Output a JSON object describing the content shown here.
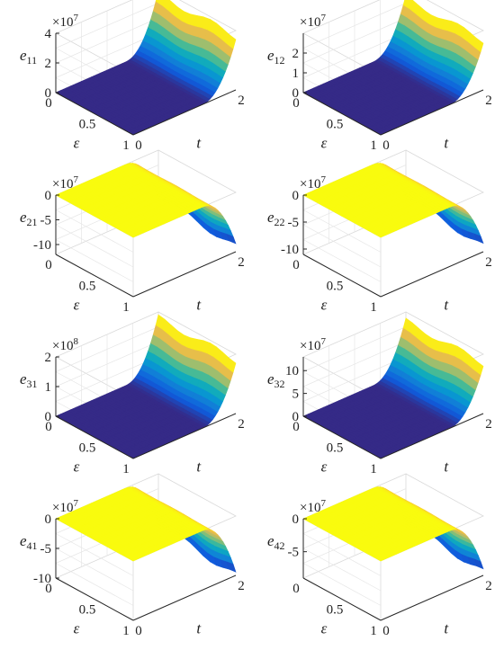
{
  "chart_data": [
    {
      "type": "surface",
      "id": "e11",
      "ylabel": "e",
      "ylabel_sub": "11",
      "multiplier": "×10",
      "multiplier_exp": "7",
      "zticks": [
        "0",
        "2",
        "4"
      ],
      "zlim": [
        0,
        4
      ],
      "xlabel": "t",
      "xticks": [
        "0",
        "2"
      ],
      "xlim": [
        0,
        2
      ],
      "eps_label": "ε",
      "eps_ticks": [
        "0",
        "0.5",
        "1"
      ],
      "eps_lim": [
        0,
        1
      ],
      "description": "surface ~0 for t<1.5, rises to ~3.6e7 at t=2",
      "sign": 1,
      "peak": 3.6,
      "zmax": 4
    },
    {
      "type": "surface",
      "id": "e12",
      "ylabel": "e",
      "ylabel_sub": "12",
      "multiplier": "×10",
      "multiplier_exp": "7",
      "zticks": [
        "0",
        "1",
        "2"
      ],
      "zlim": [
        0,
        3
      ],
      "xlabel": "t",
      "xticks": [
        "0",
        "2"
      ],
      "xlim": [
        0,
        2
      ],
      "eps_label": "ε",
      "eps_ticks": [
        "0",
        "0.5",
        "1"
      ],
      "eps_lim": [
        0,
        1
      ],
      "sign": 1,
      "peak": 2.5,
      "zmax": 3
    },
    {
      "type": "surface",
      "id": "e21",
      "ylabel": "e",
      "ylabel_sub": "21",
      "multiplier": "×10",
      "multiplier_exp": "7",
      "zticks": [
        "0",
        "-5",
        "-10"
      ],
      "zlim": [
        -12,
        0
      ],
      "xlabel": "t",
      "xticks": [
        "2"
      ],
      "xlim": [
        0,
        2
      ],
      "eps_label": "ε",
      "eps_ticks": [
        "0",
        "0.5",
        "1"
      ],
      "eps_lim": [
        0,
        1
      ],
      "sign": -1,
      "peak": -11,
      "zmax": 12
    },
    {
      "type": "surface",
      "id": "e22",
      "ylabel": "e",
      "ylabel_sub": "22",
      "multiplier": "×10",
      "multiplier_exp": "7",
      "zticks": [
        "0",
        "-5",
        "-10"
      ],
      "zlim": [
        -11,
        0
      ],
      "xlabel": "t",
      "xticks": [
        "2"
      ],
      "xlim": [
        0,
        2
      ],
      "eps_label": "ε",
      "eps_ticks": [
        "0",
        "0.5",
        "1"
      ],
      "eps_lim": [
        0,
        1
      ],
      "sign": -1,
      "peak": -10,
      "zmax": 11
    },
    {
      "type": "surface",
      "id": "e31",
      "ylabel": "e",
      "ylabel_sub": "31",
      "multiplier": "×10",
      "multiplier_exp": "8",
      "zticks": [
        "0",
        "1",
        "2"
      ],
      "zlim": [
        0,
        2
      ],
      "xlabel": "t",
      "xticks": [
        "2"
      ],
      "xlim": [
        0,
        2
      ],
      "eps_label": "ε",
      "eps_ticks": [
        "0",
        "0.5",
        "1"
      ],
      "eps_lim": [
        0,
        1
      ],
      "sign": 1,
      "peak": 1.8,
      "zmax": 2
    },
    {
      "type": "surface",
      "id": "e32",
      "ylabel": "e",
      "ylabel_sub": "32",
      "multiplier": "×10",
      "multiplier_exp": "7",
      "zticks": [
        "0",
        "5",
        "10"
      ],
      "zlim": [
        0,
        13
      ],
      "xlabel": "t",
      "xticks": [
        "2"
      ],
      "xlim": [
        0,
        2
      ],
      "eps_label": "ε",
      "eps_ticks": [
        "0",
        "0.5",
        "1"
      ],
      "eps_lim": [
        0,
        1
      ],
      "sign": 1,
      "peak": 11,
      "zmax": 13
    },
    {
      "type": "surface",
      "id": "e41",
      "ylabel": "e",
      "ylabel_sub": "41",
      "multiplier": "×10",
      "multiplier_exp": "7",
      "zticks": [
        "0",
        "-5",
        "-10"
      ],
      "zlim": [
        -10,
        0
      ],
      "xlabel": "t",
      "xticks": [
        "0",
        "2"
      ],
      "xlim": [
        0,
        2
      ],
      "eps_label": "ε",
      "eps_ticks": [
        "0",
        "0.5",
        "1"
      ],
      "eps_lim": [
        0,
        1
      ],
      "sign": -1,
      "peak": -10,
      "zmax": 10
    },
    {
      "type": "surface",
      "id": "e42",
      "ylabel": "e",
      "ylabel_sub": "42",
      "multiplier": "×10",
      "multiplier_exp": "7",
      "zticks": [
        "0",
        "-5"
      ],
      "zlim": [
        -9,
        0
      ],
      "xlabel": "t",
      "xticks": [
        "0",
        "2"
      ],
      "xlim": [
        0,
        2
      ],
      "eps_label": "ε",
      "eps_ticks": [
        "0",
        "0.5",
        "1"
      ],
      "eps_lim": [
        0,
        1
      ],
      "sign": -1,
      "peak": -8.5,
      "zmax": 9
    }
  ]
}
